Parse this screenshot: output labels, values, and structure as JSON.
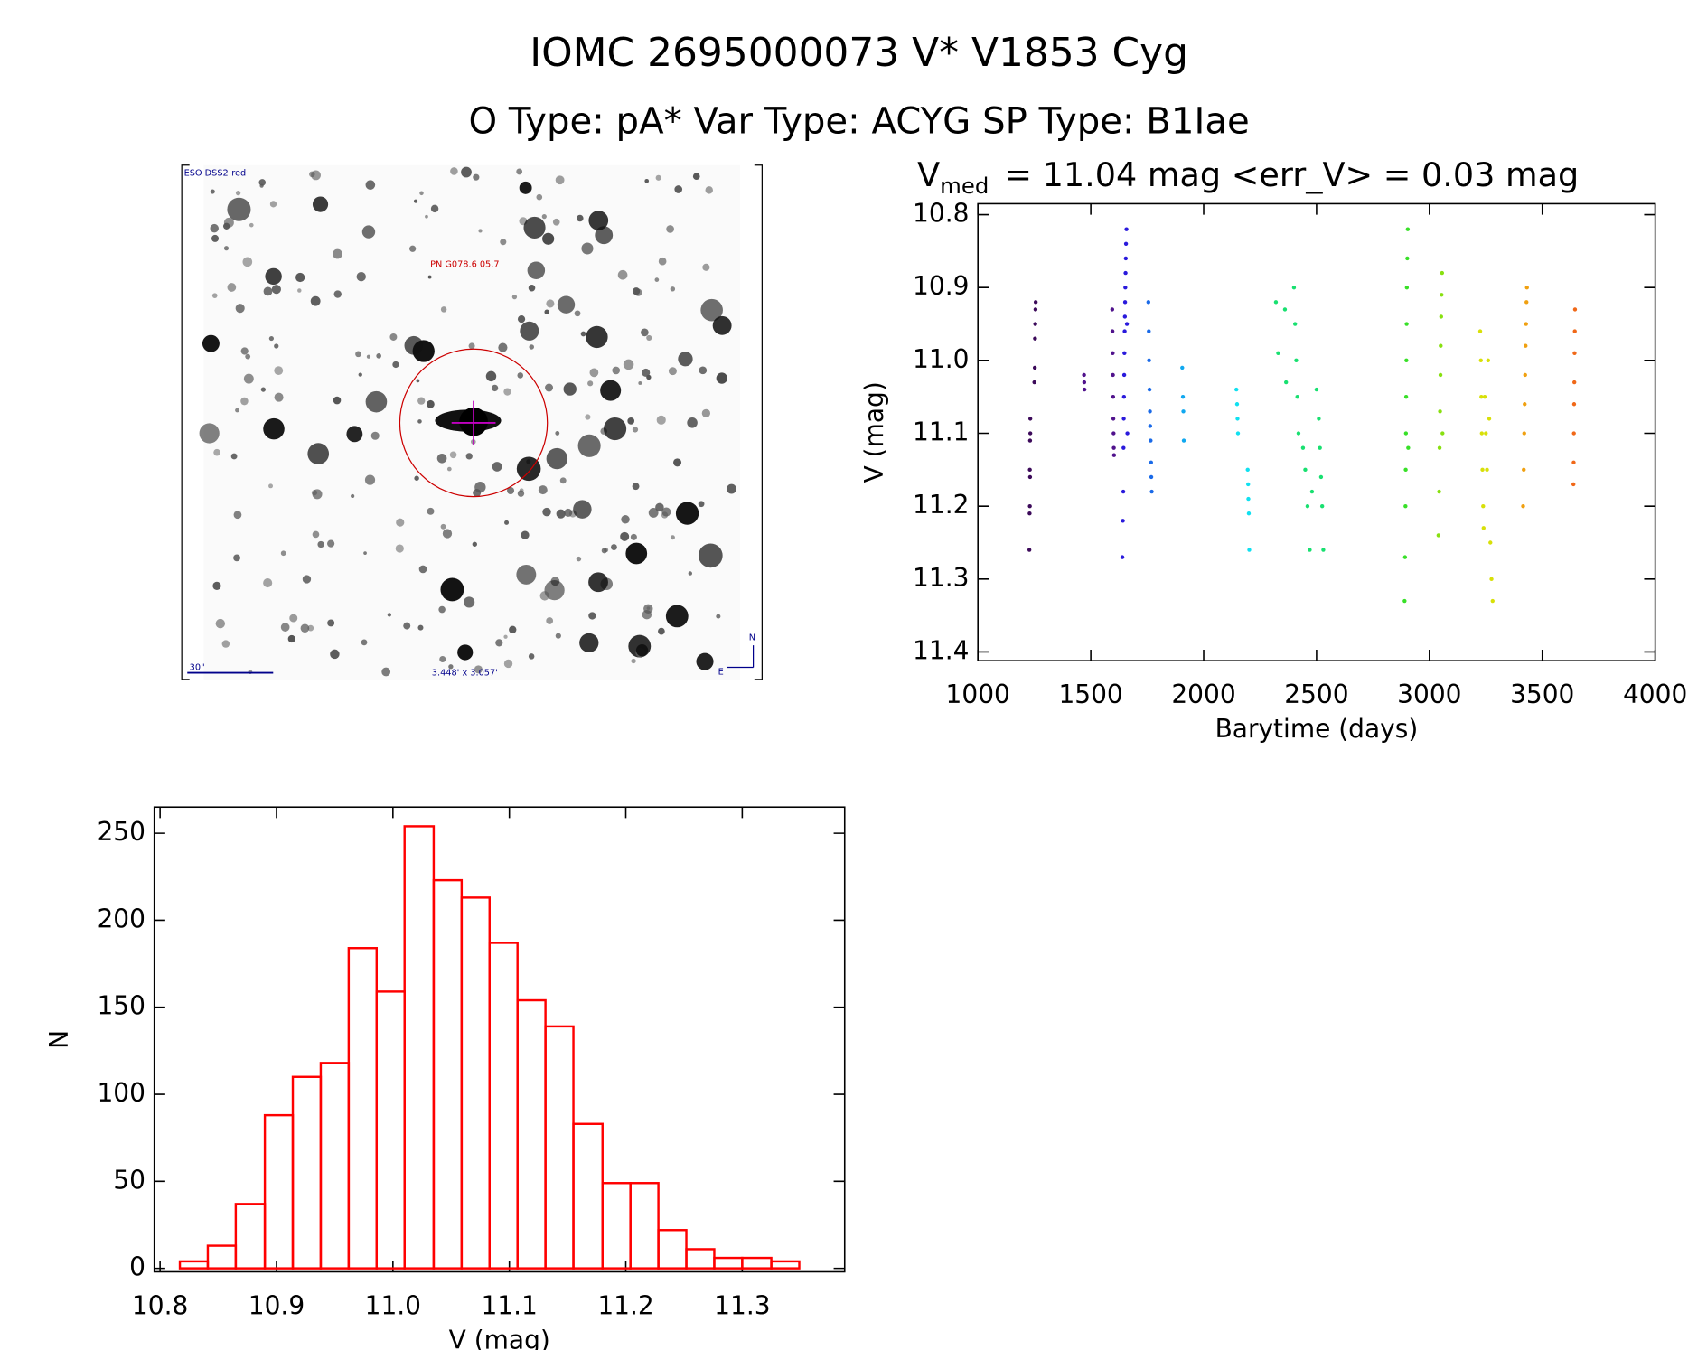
{
  "header": {
    "title": "IOMC 2695000073   V* V1853 Cyg",
    "subtitle": "O Type: pA*  Var Type: ACYG  SP Type: B1Iae"
  },
  "finder": {
    "survey": "ESO DSS2-red",
    "object": "PN G078.6 05.7",
    "scale": "30\"",
    "size": "3.448' x 3.057'",
    "north": "N",
    "east": "E"
  },
  "chart_data": [
    {
      "type": "scatter",
      "title": [
        "V",
        "med",
        "= 11.04 mag <err_V> = 0.03 mag"
      ],
      "x_label": "Barytime (days)",
      "y_label": "V (mag)",
      "xlim": [
        1000,
        4000
      ],
      "xticks": [
        1000,
        1500,
        2000,
        2500,
        3000,
        3500,
        4000
      ],
      "ylim": [
        11.412,
        10.785
      ],
      "yticks": [
        10.8,
        10.9,
        {
          "value": 11,
          "label": "11.0"
        },
        11.1,
        11.2,
        11.3,
        11.4
      ],
      "series": [
        {
          "color": "#3c0a5a",
          "x": [
            1228,
            1229,
            1230,
            1230,
            1231,
            1231,
            1232,
            1232,
            1250,
            1252,
            1253,
            1254,
            1255,
            1256
          ],
          "y": [
            11.26,
            11.21,
            11.2,
            11.15,
            11.16,
            11.11,
            11.1,
            11.08,
            11.03,
            11.01,
            10.97,
            10.95,
            10.93,
            10.92
          ]
        },
        {
          "color": "#50128c",
          "x": [
            1470,
            1471,
            1472,
            1595,
            1596,
            1597,
            1598,
            1599,
            1600,
            1601,
            1602,
            1603
          ],
          "y": [
            11.02,
            11.03,
            11.04,
            10.93,
            10.96,
            10.99,
            11.02,
            11.05,
            11.08,
            11.1,
            11.12,
            11.13
          ]
        },
        {
          "color": "#2a1adc",
          "x": [
            1640,
            1642,
            1644,
            1645,
            1646,
            1647,
            1648,
            1649,
            1650,
            1651,
            1652,
            1653,
            1654,
            1655,
            1656,
            1658,
            1660,
            1662
          ],
          "y": [
            11.27,
            11.22,
            11.18,
            11.12,
            11.08,
            11.05,
            11.02,
            10.99,
            10.96,
            10.94,
            10.92,
            10.9,
            10.88,
            10.86,
            10.84,
            10.82,
            10.95,
            11.1
          ]
        },
        {
          "color": "#1a6ae8",
          "x": [
            1755,
            1757,
            1758,
            1760,
            1762,
            1763,
            1765,
            1767,
            1768,
            1770
          ],
          "y": [
            10.92,
            10.96,
            11.0,
            11.04,
            11.07,
            11.09,
            11.11,
            11.14,
            11.16,
            11.18
          ]
        },
        {
          "color": "#10a8f0",
          "x": [
            1905,
            1908,
            1910,
            1912
          ],
          "y": [
            11.01,
            11.05,
            11.07,
            11.11
          ]
        },
        {
          "color": "#10e0f0",
          "x": [
            2145,
            2148,
            2150,
            2152,
            2195,
            2197,
            2198,
            2200,
            2202
          ],
          "y": [
            11.04,
            11.06,
            11.08,
            11.1,
            11.15,
            11.17,
            11.19,
            11.21,
            11.26
          ]
        },
        {
          "color": "#18e070",
          "x": [
            2320,
            2330,
            2360,
            2365,
            2400,
            2405,
            2410,
            2415,
            2420,
            2440,
            2450,
            2460,
            2470,
            2480,
            2500,
            2510,
            2515,
            2520,
            2525,
            2530
          ],
          "y": [
            10.92,
            10.99,
            10.93,
            11.03,
            10.9,
            10.95,
            11.0,
            11.05,
            11.1,
            11.12,
            11.15,
            11.2,
            11.26,
            11.18,
            11.04,
            11.08,
            11.12,
            11.16,
            11.2,
            11.26
          ]
        },
        {
          "color": "#38e028",
          "x": [
            2890,
            2892,
            2894,
            2895,
            2896,
            2897,
            2898,
            2899,
            2900,
            2902,
            2904,
            2906
          ],
          "y": [
            11.33,
            11.27,
            11.2,
            11.15,
            11.1,
            11.05,
            11.0,
            10.95,
            10.9,
            10.86,
            10.82,
            11.12
          ]
        },
        {
          "color": "#88e010",
          "x": [
            3040,
            3043,
            3045,
            3047,
            3049,
            3050,
            3052,
            3054,
            3056,
            3058
          ],
          "y": [
            11.24,
            11.18,
            11.12,
            11.07,
            11.02,
            10.98,
            10.94,
            10.91,
            10.88,
            11.1
          ]
        },
        {
          "color": "#d8e008",
          "x": [
            3225,
            3228,
            3230,
            3232,
            3235,
            3238,
            3240,
            3245,
            3250,
            3255,
            3260,
            3265,
            3270,
            3275,
            3280
          ],
          "y": [
            10.96,
            11.0,
            11.05,
            11.1,
            11.15,
            11.2,
            11.23,
            11.05,
            11.1,
            11.15,
            11.0,
            11.08,
            11.25,
            11.3,
            11.33
          ]
        },
        {
          "color": "#f0a010",
          "x": [
            3415,
            3418,
            3420,
            3422,
            3424,
            3426,
            3428,
            3430,
            3432
          ],
          "y": [
            11.2,
            11.15,
            11.1,
            11.06,
            11.02,
            10.98,
            10.95,
            10.92,
            10.9
          ]
        },
        {
          "color": "#f06818",
          "x": [
            3638,
            3639,
            3640,
            3641,
            3642,
            3643,
            3644,
            3645
          ],
          "y": [
            11.17,
            11.14,
            11.1,
            11.06,
            11.03,
            10.99,
            10.96,
            10.93
          ]
        }
      ]
    },
    {
      "type": "histogram",
      "x_label": "V (mag)",
      "y_label": "N",
      "color": "#ff0000",
      "bins": [
        10.817,
        10.841,
        10.865,
        10.89,
        10.914,
        10.938,
        10.962,
        10.986,
        11.01,
        11.035,
        11.059,
        11.083,
        11.107,
        11.131,
        11.155,
        11.18,
        11.204,
        11.228,
        11.252,
        11.276,
        11.3,
        11.325,
        11.349
      ],
      "values": [
        4,
        13,
        37,
        88,
        110,
        118,
        184,
        159,
        254,
        223,
        213,
        187,
        154,
        139,
        83,
        49,
        49,
        22,
        11,
        6,
        6,
        4
      ],
      "xlim": [
        10.795,
        11.388
      ],
      "xticks": [
        10.8,
        10.9,
        {
          "value": 11,
          "label": "11.0"
        },
        11.1,
        11.2,
        11.3
      ],
      "ylim": [
        -2,
        265
      ],
      "yticks": [
        0,
        50,
        100,
        150,
        200,
        250
      ]
    }
  ]
}
